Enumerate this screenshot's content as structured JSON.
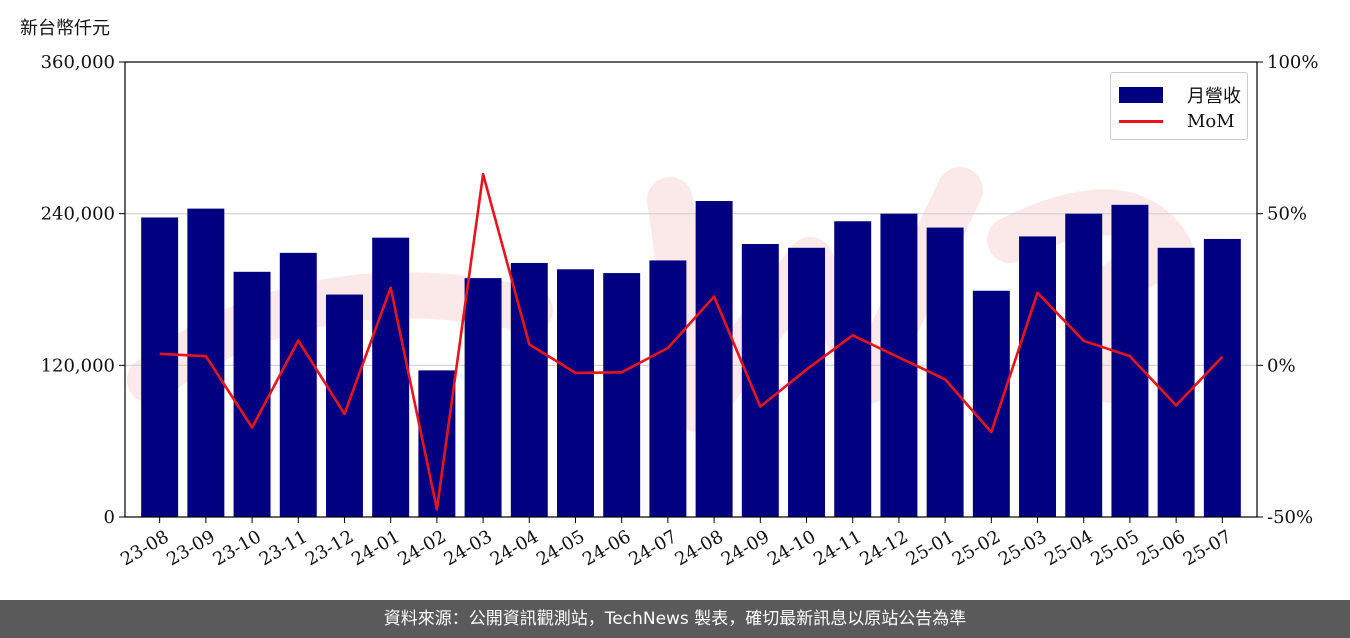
{
  "unit_label": "新台幣仟元",
  "footer_text": "資料來源：公開資訊觀測站，TechNews 製表，確切最新訊息以原站公告為準",
  "colors": {
    "bar": "#000080",
    "line": "#e8141b",
    "footer_bg": "#5a5a5a",
    "watermark": "#e03030"
  },
  "chart_data": {
    "type": "bar",
    "categories": [
      "23-08",
      "23-09",
      "23-10",
      "23-11",
      "23-12",
      "24-01",
      "24-02",
      "24-03",
      "24-04",
      "24-05",
      "24-06",
      "24-07",
      "24-08",
      "24-09",
      "24-10",
      "24-11",
      "24-12",
      "25-01",
      "25-02",
      "25-03",
      "25-04",
      "25-05",
      "25-06",
      "25-07"
    ],
    "series": [
      {
        "name": "月營收",
        "type": "bar",
        "axis": "left",
        "values": [
          237000,
          244000,
          194000,
          209000,
          176000,
          221000,
          116000,
          189000,
          201000,
          196000,
          193000,
          203000,
          250000,
          216000,
          213000,
          234000,
          240000,
          229000,
          179000,
          222000,
          240000,
          247000,
          213000,
          220000
        ]
      },
      {
        "name": "MoM",
        "type": "line",
        "axis": "right",
        "values": [
          3.8,
          3.0,
          -20.5,
          8.2,
          -16.0,
          25.6,
          -47.5,
          63.0,
          6.9,
          -2.5,
          -2.3,
          5.7,
          22.7,
          -13.6,
          -1.4,
          9.9,
          2.6,
          -4.6,
          -22.0,
          23.9,
          8.1,
          3.0,
          -13.2,
          2.8
        ]
      }
    ],
    "y_left": {
      "ylim": [
        0,
        360000
      ],
      "ticks": [
        "0",
        "120,000",
        "240,000",
        "360,000"
      ]
    },
    "y_right": {
      "ylim": [
        -50,
        100
      ],
      "ticks": [
        "-50%",
        "0%",
        "50%",
        "100%"
      ]
    },
    "grid": "horizontal",
    "legend_position": "top-right"
  }
}
